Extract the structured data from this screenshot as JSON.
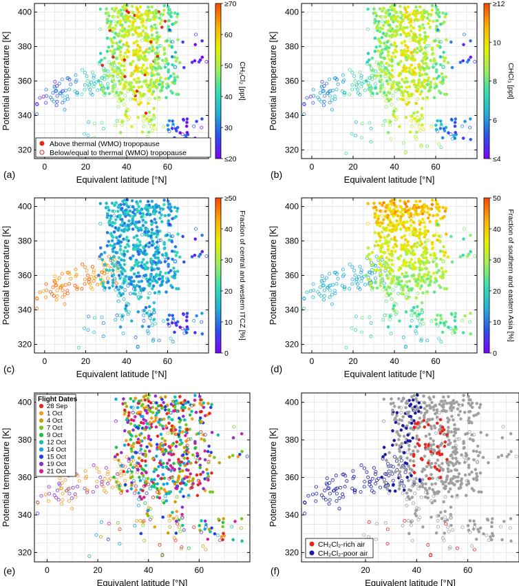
{
  "colors": {
    "rainbow_stops": [
      "#8000ff",
      "#2c50f2",
      "#1fb0d8",
      "#33e0b0",
      "#9ef05a",
      "#e8f000",
      "#ffae00",
      "#ff4500"
    ],
    "above_tropopause": "#e8251c",
    "rich_air": "#e8251c",
    "poor_air": "#1a1aa6",
    "grey_points": "#a0a0a0"
  },
  "chart_data": [
    {
      "panel": "(a)",
      "type": "scatter",
      "xlabel": "Equivalent latitude [°N]",
      "ylabel": "Potential temperature [K]",
      "xlim": [
        -5,
        80
      ],
      "ylim": [
        315,
        405
      ],
      "xticks": [
        "0",
        "20",
        "40",
        "60"
      ],
      "yticks": [
        "320",
        "340",
        "360",
        "380",
        "400"
      ],
      "grid": true,
      "colorbar": {
        "label": "CH₂Cl₂ [ppt]",
        "ticks": [
          "≥70",
          "60",
          "50",
          "40",
          "30",
          "≤20"
        ],
        "range": [
          20,
          70
        ]
      },
      "legend": {
        "position": "bottom-left",
        "entries": [
          "Above thermal (WMO) tropopause",
          "Below/equal to thermal (WMO) tropopause"
        ]
      }
    },
    {
      "panel": "(b)",
      "type": "scatter",
      "xlabel": "Equivalent latitude [°N]",
      "ylabel": "Potential temperature [K]",
      "xlim": [
        -5,
        80
      ],
      "ylim": [
        315,
        405
      ],
      "xticks": [
        "0",
        "20",
        "40",
        "60"
      ],
      "yticks": [
        "320",
        "340",
        "360",
        "380",
        "400"
      ],
      "grid": true,
      "colorbar": {
        "label": "CHCl₃ [ppt]",
        "ticks": [
          "≥12",
          "10",
          "8",
          "6",
          "≤4"
        ],
        "range": [
          4,
          12
        ]
      }
    },
    {
      "panel": "(c)",
      "type": "scatter",
      "xlabel": "Equivalent latitude [°N]",
      "ylabel": "Potential temperature [K]",
      "xlim": [
        -5,
        80
      ],
      "ylim": [
        315,
        405
      ],
      "xticks": [
        "0",
        "20",
        "40",
        "60"
      ],
      "yticks": [
        "320",
        "340",
        "360",
        "380",
        "400"
      ],
      "grid": true,
      "colorbar": {
        "label": "Fraction of central and western ITCZ [%]",
        "ticks": [
          "≥50",
          "40",
          "30",
          "20",
          "10",
          "0"
        ],
        "range": [
          0,
          50
        ]
      }
    },
    {
      "panel": "(d)",
      "type": "scatter",
      "xlabel": "Equivalent latitude [°N]",
      "ylabel": "Potential temperature [K]",
      "xlim": [
        -5,
        80
      ],
      "ylim": [
        315,
        405
      ],
      "xticks": [
        "0",
        "20",
        "40",
        "60"
      ],
      "yticks": [
        "320",
        "340",
        "360",
        "380",
        "400"
      ],
      "grid": true,
      "colorbar": {
        "label": "Fraction of southern and eastern Asia [%]",
        "ticks": [
          "50",
          "40",
          "30",
          "20",
          "10",
          "0"
        ],
        "range": [
          0,
          50
        ]
      }
    },
    {
      "panel": "(e)",
      "type": "scatter",
      "xlabel": "Equivalent latitude [°N]",
      "ylabel": "Potential temperature [K]",
      "xlim": [
        -5,
        80
      ],
      "ylim": [
        315,
        405
      ],
      "xticks": [
        "0",
        "20",
        "40",
        "60"
      ],
      "yticks": [
        "320",
        "340",
        "360",
        "380",
        "400"
      ],
      "grid": true,
      "legend": {
        "position": "top-left",
        "title": "Flight Dates",
        "entries": [
          {
            "label": "28 Sep",
            "color": "#e8251c"
          },
          {
            "label": "1 Oct",
            "color": "#f59a1a"
          },
          {
            "label": "4 Oct",
            "color": "#c8a000"
          },
          {
            "label": "7 Oct",
            "color": "#78c81e"
          },
          {
            "label": "9 Oct",
            "color": "#20c040"
          },
          {
            "label": "12 Oct",
            "color": "#10c0a0"
          },
          {
            "label": "14 Oct",
            "color": "#10a8e0"
          },
          {
            "label": "15 Oct",
            "color": "#2040e0"
          },
          {
            "label": "19 Oct",
            "color": "#8a30d0"
          },
          {
            "label": "21 Oct",
            "color": "#d0209a"
          }
        ]
      }
    },
    {
      "panel": "(f)",
      "type": "scatter",
      "xlabel": "Equivalent latitude [°N]",
      "ylabel": "Potential temperature [K]",
      "xlim": [
        -5,
        80
      ],
      "ylim": [
        315,
        405
      ],
      "xticks": [
        "20",
        "40",
        "60"
      ],
      "yticks": [
        "320",
        "340",
        "360",
        "380",
        "400"
      ],
      "grid": true,
      "legend": {
        "position": "bottom-left",
        "entries": [
          "CH₂Cl₂-rich air",
          "CH₂Cl₂-poor air"
        ]
      }
    }
  ]
}
